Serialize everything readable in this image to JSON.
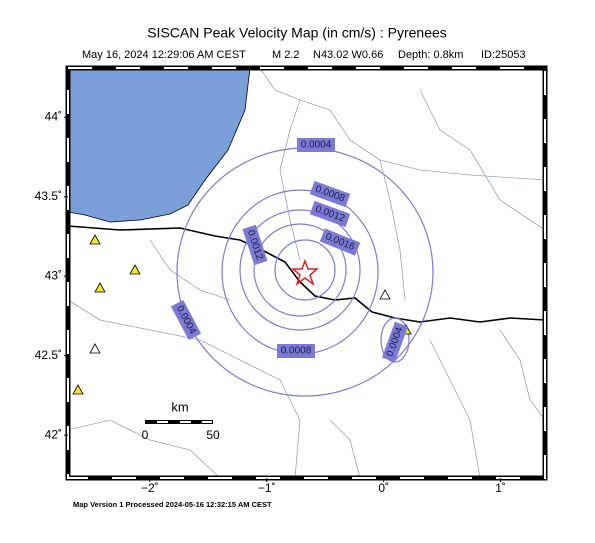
{
  "header": {
    "title": "SISCAN Peak Velocity Map (in cm/s) : Pyrenees",
    "subtitle": [
      "May 16, 2024 12:29:06 AM CEST",
      "M 2.2",
      "N43.02 W0.66",
      "Depth: 0.8km",
      "ID:25053"
    ]
  },
  "map": {
    "lon_range": [
      -2.7,
      1.38
    ],
    "lat_range": [
      41.73,
      44.31
    ],
    "lon_ticks": [
      {
        "value": -2,
        "label": "−2˚"
      },
      {
        "value": -1,
        "label": "−1˚"
      },
      {
        "value": 0,
        "label": "0˚"
      },
      {
        "value": 1,
        "label": "1˚"
      }
    ],
    "lat_ticks": [
      {
        "value": 42,
        "label": "42˚"
      },
      {
        "value": 42.5,
        "label": "42.5˚"
      },
      {
        "value": 43,
        "label": "43˚"
      },
      {
        "value": 43.5,
        "label": "43.5˚"
      },
      {
        "value": 44,
        "label": "44˚"
      }
    ],
    "contour_labels": [
      "0.0004",
      "0.0008",
      "0.0012",
      "0.0016",
      "0.0012",
      "0.0004",
      "0.0008",
      "0.0004"
    ]
  },
  "scale": {
    "unit": "km",
    "labels": [
      "0",
      "50"
    ]
  },
  "footer": "Map Version 1 Processed 2024-05-16 12:32:15 AM CEST"
}
